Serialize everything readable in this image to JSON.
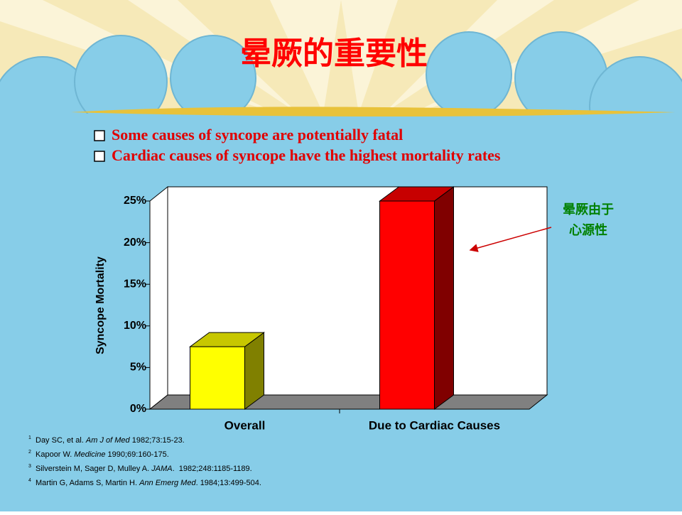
{
  "title": "晕厥的重要性",
  "bullets": [
    "Some causes of syncope are potentially fatal",
    "Cardiac causes of syncope have the highest mortality rates"
  ],
  "chart_data": {
    "type": "bar3d",
    "y_label": "Syncope Mortality",
    "categories": [
      "Overall",
      "Due to Cardiac Causes"
    ],
    "values": [
      7.5,
      25
    ],
    "colors": [
      "#ffff00",
      "#ff0000"
    ],
    "ylim": [
      0,
      25
    ],
    "yticks": [
      {
        "value": 0,
        "label": "0%"
      },
      {
        "value": 5,
        "label": "5%"
      },
      {
        "value": 10,
        "label": "10%"
      },
      {
        "value": 15,
        "label": "15%"
      },
      {
        "value": 20,
        "label": "20%"
      },
      {
        "value": 25,
        "label": "25%"
      }
    ],
    "annotation": [
      "晕厥由于",
      "心源性"
    ]
  },
  "footnotes": [
    {
      "num": "1",
      "pre": "Day SC, et al. ",
      "journal": "Am J of Med",
      "post": " 1982;73:15-23."
    },
    {
      "num": "2",
      "pre": "Kapoor W. ",
      "journal": "Medicine",
      "post": " 1990;69:160-175."
    },
    {
      "num": "3",
      "pre": "Silverstein M, Sager D, Mulley A. ",
      "journal": "JAMA",
      "post": ".  1982;248:1185-1189."
    },
    {
      "num": "4",
      "pre": "Martin G, Adams S, Martin H. ",
      "journal": "Ann Emerg Med",
      "post": ". 1984;13:499-504."
    }
  ]
}
